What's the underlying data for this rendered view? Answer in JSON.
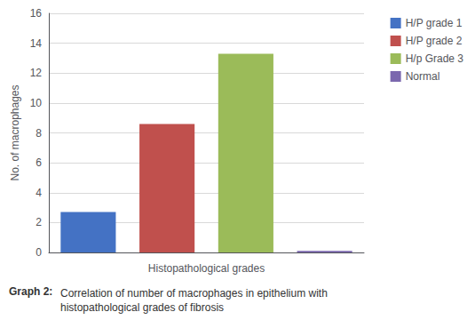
{
  "chart_data": {
    "type": "bar",
    "categories": [
      "H/P grade 1",
      "H/P grade 2",
      "H/p Grade 3",
      "Normal"
    ],
    "values": [
      2.7,
      8.6,
      13.3,
      0.1
    ],
    "colors": [
      "#4472c4",
      "#c0504d",
      "#9bbb59",
      "#7b68ae"
    ],
    "xlabel": "Histopathological grades",
    "ylabel": "No. of macrophages",
    "ylim": [
      0,
      16
    ],
    "yticks": [
      0,
      2,
      4,
      6,
      8,
      10,
      12,
      14,
      16
    ],
    "grid": true,
    "legend": "upper right",
    "tick_labels": "y",
    "annotations": [
      "Graph 2:",
      "Correlation of number of macrophages in epithelium with\nhistopathological grades of fibrosis"
    ]
  }
}
